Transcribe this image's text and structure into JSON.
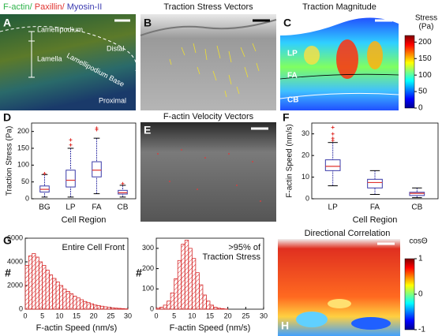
{
  "panel_a": {
    "letter": "A",
    "legend": [
      "F-actin/",
      "Paxillin/",
      "Myosin-II"
    ],
    "legend_colors": [
      "#2db34a",
      "#e0332f",
      "#3a3ab0"
    ],
    "labels": [
      "Lamellipodium",
      "Lamella",
      "Lamellipodium Base",
      "Distal",
      "Proximal"
    ]
  },
  "panel_b": {
    "letter": "B",
    "title": "Traction Stress Vectors"
  },
  "panel_c": {
    "letter": "C",
    "title": "Traction Magnitude",
    "regions": [
      "LP",
      "FA",
      "CB"
    ],
    "colorbar": {
      "label": [
        "Stress",
        "(Pa)"
      ],
      "lim": [
        0,
        220
      ],
      "ticks": [
        0,
        50,
        100,
        150,
        200
      ]
    }
  },
  "panel_e": {
    "letter": "E",
    "title": "F-actin Velocity Vectors"
  },
  "panel_h": {
    "letter": "H",
    "title": "Directional Correlation",
    "colorbar": {
      "label": [
        "cosΘ"
      ],
      "lim": [
        -1,
        1
      ],
      "ticks": [
        -1,
        0,
        1
      ]
    }
  },
  "chart_data": [
    {
      "type": "box",
      "panel": "D",
      "ylabel": "Traction Stress (Pa)",
      "xlabel": "Cell Region",
      "categories": [
        "BG",
        "LP",
        "FA",
        "CB"
      ],
      "ylim": [
        0,
        225
      ],
      "yticks": [
        0,
        50,
        100,
        150,
        200
      ],
      "color": "#3a3aa8",
      "median_color": "#e0332f",
      "boxes": [
        {
          "low": 5,
          "q1": 20,
          "median": 28,
          "q3": 38,
          "high": 72,
          "outliers": [
            75
          ]
        },
        {
          "low": 5,
          "q1": 35,
          "median": 55,
          "q3": 85,
          "high": 150,
          "outliers": [
            160,
            175
          ]
        },
        {
          "low": 15,
          "q1": 65,
          "median": 85,
          "q3": 110,
          "high": 180,
          "outliers": [
            205,
            210
          ]
        },
        {
          "low": 5,
          "q1": 14,
          "median": 18,
          "q3": 25,
          "high": 40,
          "outliers": [
            45
          ]
        }
      ]
    },
    {
      "type": "box",
      "panel": "F",
      "ylabel": "F-actin Speed (nm/s)",
      "xlabel": "Cell Region",
      "categories": [
        "LP",
        "FA",
        "CB"
      ],
      "ylim": [
        0,
        35
      ],
      "yticks": [
        0,
        10,
        20,
        30
      ],
      "color": "#3a3aa8",
      "median_color": "#e0332f",
      "boxes": [
        {
          "low": 6,
          "q1": 13,
          "median": 15,
          "q3": 18,
          "high": 26,
          "outliers": [
            27,
            28,
            30,
            33
          ]
        },
        {
          "low": 2,
          "q1": 5,
          "median": 7.5,
          "q3": 9,
          "high": 13,
          "outliers": []
        },
        {
          "low": 0.5,
          "q1": 1.5,
          "median": 2.5,
          "q3": 3,
          "high": 5,
          "outliers": []
        }
      ]
    },
    {
      "type": "histogram",
      "panel": "G",
      "annotation": [
        "Entire Cell Front"
      ],
      "xlabel": "F-actin Speed (nm/s)",
      "ylabel": "#",
      "xlim": [
        0,
        30
      ],
      "xticks": [
        0,
        5,
        10,
        15,
        20,
        25,
        30
      ],
      "ylim": [
        0,
        6000
      ],
      "yticks": [
        0,
        2000,
        4000,
        6000
      ],
      "color": "#d62728",
      "bins": [
        0,
        1,
        2,
        3,
        4,
        5,
        6,
        7,
        8,
        9,
        10,
        11,
        12,
        13,
        14,
        15,
        16,
        17,
        18,
        19,
        20,
        21,
        22,
        23,
        24,
        25,
        26,
        27,
        28,
        29,
        30
      ],
      "counts": [
        3700,
        4500,
        4700,
        4400,
        4000,
        3700,
        3300,
        2900,
        2600,
        2300,
        2000,
        1700,
        1500,
        1300,
        1100,
        950,
        800,
        650,
        550,
        450,
        350,
        300,
        250,
        200,
        150,
        120,
        90,
        70,
        50,
        30
      ]
    },
    {
      "type": "histogram",
      "annotation": [
        ">95% of",
        "Traction Stress"
      ],
      "xlabel": "F-actin Speed (nm/s)",
      "ylabel": "#",
      "xlim": [
        0,
        30
      ],
      "xticks": [
        0,
        5,
        10,
        15,
        20,
        25,
        30
      ],
      "ylim": [
        0,
        350
      ],
      "yticks": [
        0,
        100,
        200,
        300
      ],
      "color": "#d62728",
      "bins": [
        0,
        1,
        2,
        3,
        4,
        5,
        6,
        7,
        8,
        9,
        10,
        11,
        12,
        13,
        14,
        15,
        16,
        17,
        18,
        19,
        20
      ],
      "counts": [
        5,
        10,
        20,
        40,
        80,
        150,
        240,
        320,
        340,
        300,
        250,
        180,
        120,
        70,
        40,
        20,
        10,
        5,
        3,
        1
      ]
    }
  ]
}
